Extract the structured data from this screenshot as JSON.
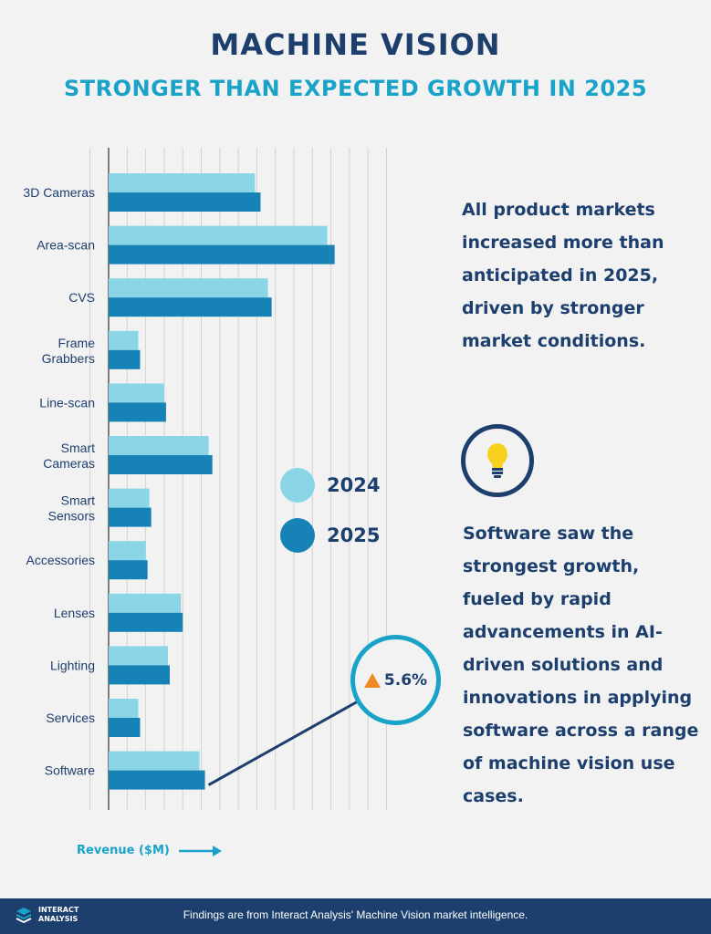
{
  "header": {
    "title": "MACHINE VISION",
    "subtitle": "STRONGER THAN EXPECTED GROWTH IN 2025"
  },
  "colors": {
    "series_2024": "#8ad6e6",
    "series_2025": "#1682b5",
    "navy": "#1d3f6e",
    "accent": "#1aa3c8",
    "triangle": "#f08a24"
  },
  "legend": [
    {
      "label": "2024"
    },
    {
      "label": "2025"
    }
  ],
  "callout": {
    "value": "5.6%",
    "icon": "up-triangle-icon"
  },
  "text": {
    "para1": "All product markets increased more than anticipated in 2025, driven by stronger market conditions.",
    "para2": "Software saw the strongest growth, fueled by rapid advancements in AI-driven solutions and innovations in applying software across a range of machine vision use cases.",
    "bulb_icon": "lightbulb-icon"
  },
  "axis": {
    "label": "Revenue ($M)"
  },
  "footer": {
    "logo_line1": "INTERACT",
    "logo_line2": "ANALYSIS",
    "note": "Findings are from Interact Analysis' Machine Vision market intelligence."
  },
  "chart_data": {
    "type": "bar",
    "orientation": "horizontal",
    "title": "MACHINE VISION",
    "subtitle": "STRONGER THAN EXPECTED GROWTH IN 2025",
    "xlabel": "Revenue ($M)",
    "ylabel": "",
    "xlim": [
      0,
      16
    ],
    "grid": true,
    "legend_position": "right-middle",
    "categories": [
      [
        "3D Cameras"
      ],
      [
        "Area-scan"
      ],
      [
        "CVS"
      ],
      [
        "Frame",
        "Grabbers"
      ],
      [
        "Line-scan"
      ],
      [
        "Smart",
        "Cameras"
      ],
      [
        "Smart",
        "Sensors"
      ],
      [
        "Accessories"
      ],
      [
        "Lenses"
      ],
      [
        "Lighting"
      ],
      [
        "Services"
      ],
      [
        "Software"
      ]
    ],
    "series": [
      {
        "name": "2024",
        "values": [
          7.9,
          11.8,
          8.6,
          1.6,
          3.0,
          5.4,
          2.2,
          2.0,
          3.9,
          3.2,
          1.6,
          4.9
        ]
      },
      {
        "name": "2025",
        "values": [
          8.2,
          12.2,
          8.8,
          1.7,
          3.1,
          5.6,
          2.3,
          2.1,
          4.0,
          3.3,
          1.7,
          5.2
        ]
      }
    ],
    "annotations": [
      {
        "category": "Software",
        "text": "5.6%"
      }
    ]
  }
}
